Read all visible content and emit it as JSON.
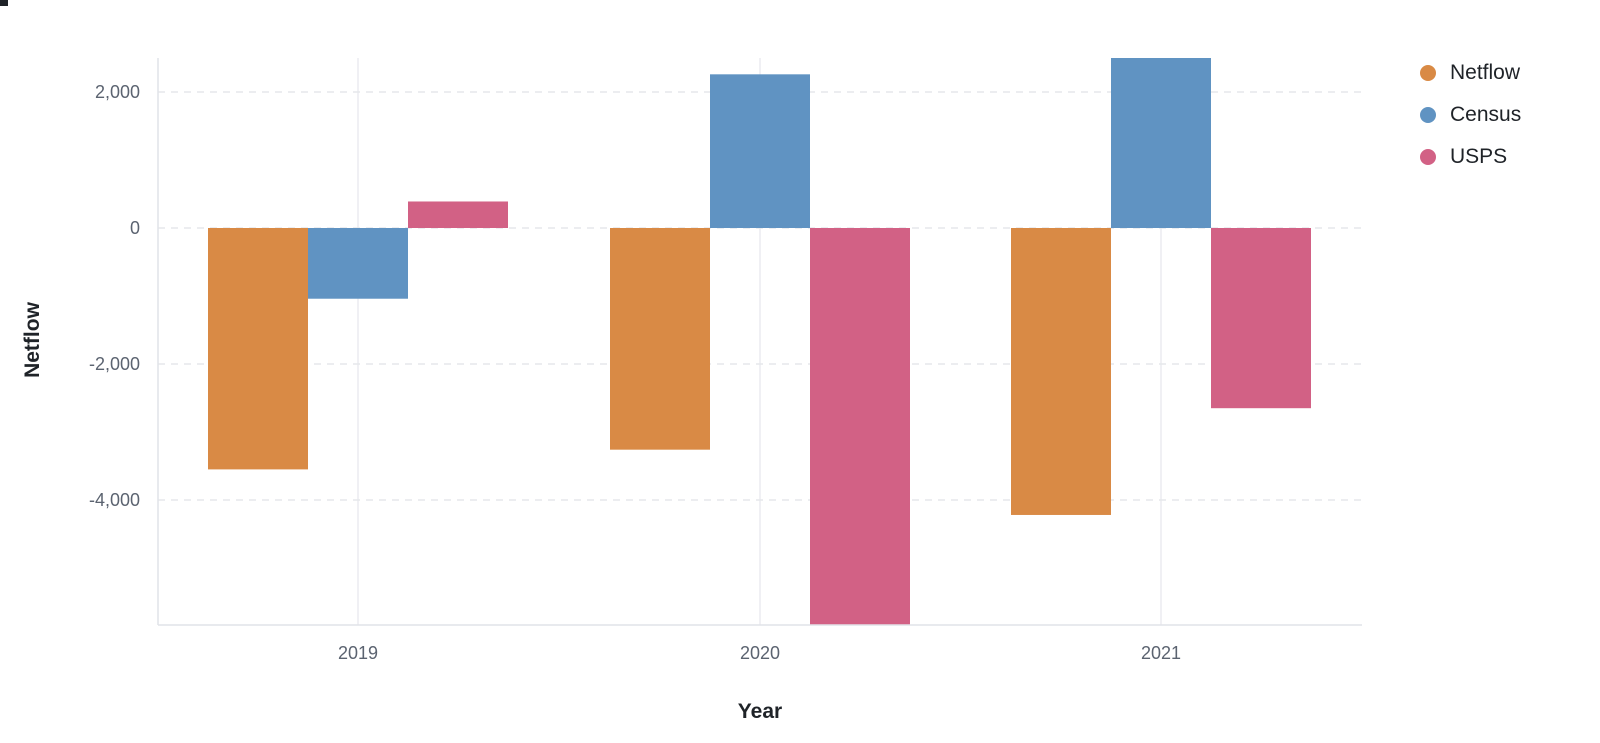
{
  "chart_data": {
    "type": "bar",
    "title": "",
    "xlabel": "Year",
    "ylabel": "Netflow",
    "categories": [
      "2019",
      "2020",
      "2021"
    ],
    "series": [
      {
        "name": "Netflow",
        "color": "#d98a45",
        "values": [
          -3550,
          -3260,
          -4220
        ]
      },
      {
        "name": "Census",
        "color": "#6093c2",
        "values": [
          -1040,
          2260,
          2510
        ]
      },
      {
        "name": "USPS",
        "color": "#d26185",
        "values": [
          390,
          -5850,
          -2650
        ]
      }
    ],
    "ylim": [
      -5850,
      2500
    ],
    "yticks": [
      2000,
      0,
      -2000,
      -4000
    ],
    "ytick_labels": [
      "2,000",
      "0",
      "-2,000",
      "-4,000"
    ],
    "grid": true,
    "legend_position": "top-right"
  }
}
